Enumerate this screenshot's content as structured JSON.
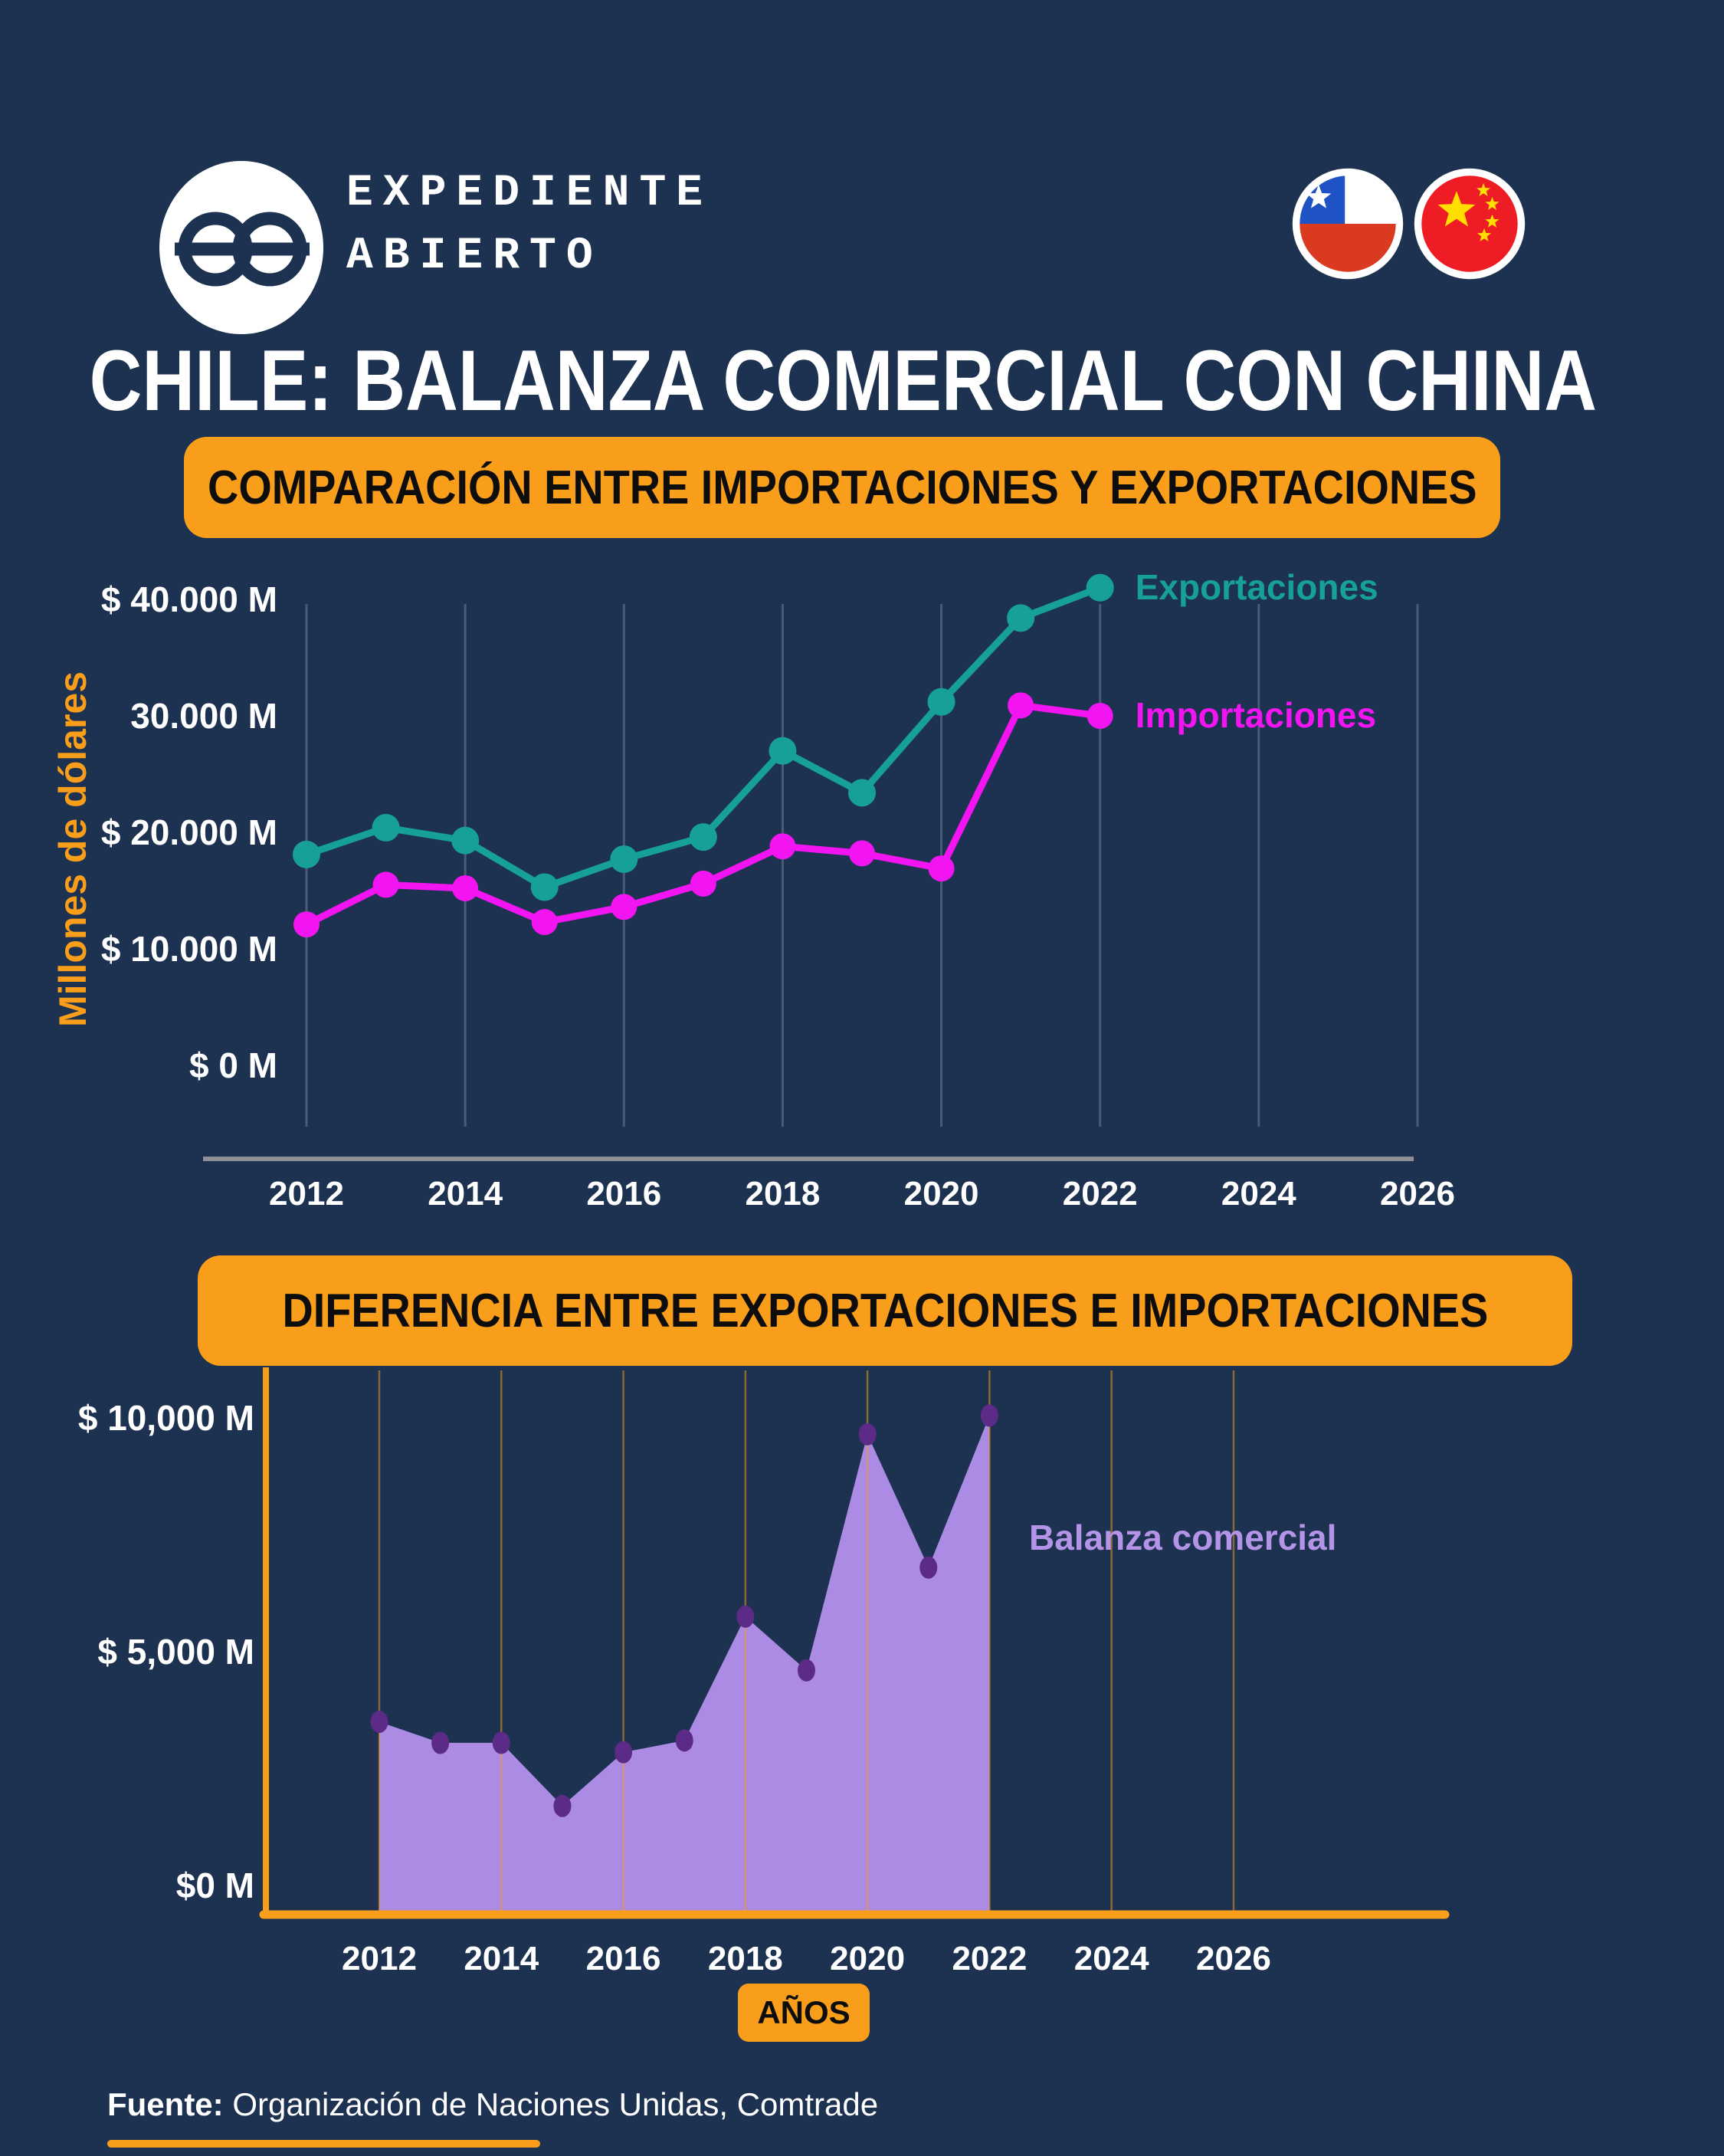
{
  "header": {
    "brand_line1": "EXPEDIENTE",
    "brand_line2": "ABIERTO",
    "flags": [
      "chile-flag",
      "china-flag"
    ]
  },
  "title": "CHILE: BALANZA COMERCIAL CON CHINA",
  "section1": {
    "banner": "COMPARACIÓN ENTRE IMPORTACIONES Y EXPORTACIONES"
  },
  "section2": {
    "banner": "DIFERENCIA ENTRE EXPORTACIONES E IMPORTACIONES",
    "x_axis_badge": "AÑOS"
  },
  "footer": {
    "source_label": "Fuente:",
    "source_text": "Organización de Naciones Unidas, Comtrade"
  },
  "colors": {
    "background": "#1d3150",
    "accent_orange": "#f99e1b",
    "exportaciones_teal": "#16a098",
    "importaciones_magenta": "#f215f2",
    "balanza_fill_purple": "#ab8be4",
    "balanza_marker_purple": "#5b2b87",
    "balanza_label_purple": "#b394e6",
    "gridline_slate": "#4b5b76",
    "axis_gray": "#8f9094",
    "text_white": "#ffffff"
  },
  "chart_data": [
    {
      "type": "line",
      "title": "COMPARACIÓN ENTRE IMPORTACIONES Y EXPORTACIONES",
      "x": [
        2012,
        2013,
        2014,
        2015,
        2016,
        2017,
        2018,
        2019,
        2020,
        2021,
        2022
      ],
      "series": [
        {
          "name": "Exportaciones",
          "color": "#16a098",
          "values": [
            18100,
            20400,
            19300,
            15300,
            17700,
            19600,
            27000,
            23400,
            31200,
            38400,
            41000
          ]
        },
        {
          "name": "Importaciones",
          "color": "#f215f2",
          "values": [
            12100,
            15500,
            15200,
            12300,
            13600,
            15600,
            18800,
            18200,
            16900,
            30900,
            30000
          ]
        }
      ],
      "ylabel": "Millones de dólares",
      "x_axis_ticks": [
        2012,
        2014,
        2016,
        2018,
        2020,
        2022,
        2024,
        2026
      ],
      "y_axis_ticks": [
        {
          "value": 40000,
          "label": "$ 40.000 M"
        },
        {
          "value": 30000,
          "label": "30.000 M"
        },
        {
          "value": 20000,
          "label": "$ 20.000 M"
        },
        {
          "value": 10000,
          "label": "$ 10.000 M"
        },
        {
          "value": 0,
          "label": "$ 0 M"
        }
      ],
      "ylim": [
        0,
        41500
      ],
      "xlim": [
        2012,
        2026
      ],
      "grid": "vertical-only",
      "legend_position": "end-of-line"
    },
    {
      "type": "area",
      "title": "DIFERENCIA ENTRE EXPORTACIONES E IMPORTACIONES",
      "x": [
        2012,
        2013,
        2014,
        2015,
        2016,
        2017,
        2018,
        2019,
        2020,
        2021,
        2022
      ],
      "series": [
        {
          "name": "Balanza comercial",
          "color": "#ab8be4",
          "marker_color": "#5b2b87",
          "values": [
            3500,
            3050,
            3050,
            1700,
            2850,
            3100,
            5750,
            4600,
            9650,
            6800,
            10050
          ]
        }
      ],
      "xlabel": "AÑOS",
      "x_axis_ticks": [
        2012,
        2014,
        2016,
        2018,
        2020,
        2022,
        2024,
        2026
      ],
      "y_axis_ticks": [
        {
          "value": 10000,
          "label": "$ 10,000 M"
        },
        {
          "value": 5000,
          "label": "$ 5,000 M"
        },
        {
          "value": 0,
          "label": "$0 M"
        }
      ],
      "ylim": [
        0,
        10500
      ],
      "xlim": [
        2012,
        2026
      ],
      "grid": "vertical-only",
      "legend_position": "inside-right"
    }
  ]
}
